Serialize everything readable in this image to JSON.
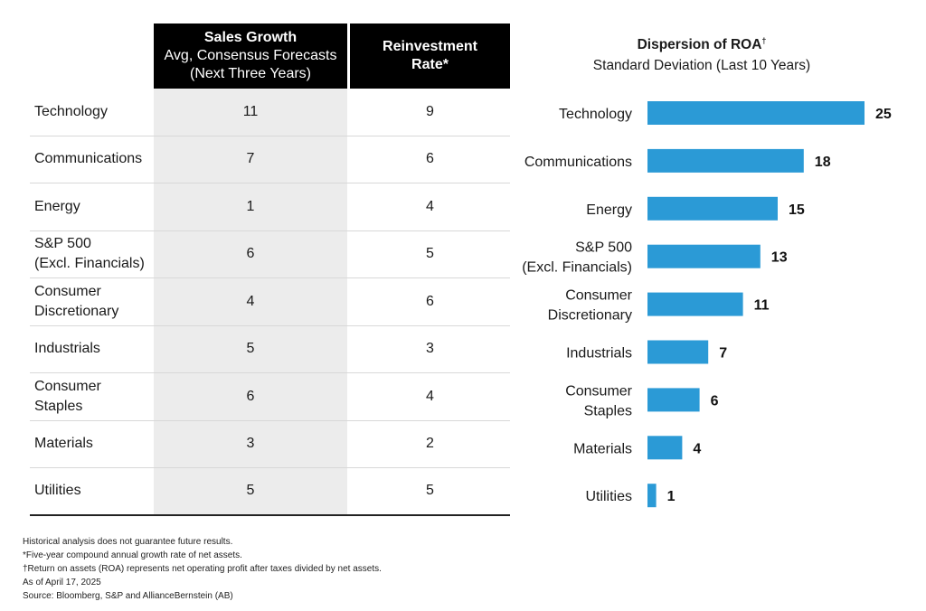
{
  "table": {
    "headers": {
      "sales_growth_title": "Sales Growth",
      "sales_growth_sub1": "Avg, Consensus Forecasts",
      "sales_growth_sub2": "(Next Three Years)",
      "reinvestment_line1": "Reinvestment",
      "reinvestment_line2": "Rate*"
    },
    "rows": [
      {
        "sector_line1": "Technology",
        "sector_line2": "",
        "sales_growth": "11",
        "reinvestment_rate": "9"
      },
      {
        "sector_line1": "Communications",
        "sector_line2": "",
        "sales_growth": "7",
        "reinvestment_rate": "6"
      },
      {
        "sector_line1": "Energy",
        "sector_line2": "",
        "sales_growth": "1",
        "reinvestment_rate": "4"
      },
      {
        "sector_line1": "S&P 500",
        "sector_line2": "(Excl. Financials)",
        "sales_growth": "6",
        "reinvestment_rate": "5"
      },
      {
        "sector_line1": "Consumer",
        "sector_line2": "Discretionary",
        "sales_growth": "4",
        "reinvestment_rate": "6"
      },
      {
        "sector_line1": "Industrials",
        "sector_line2": "",
        "sales_growth": "5",
        "reinvestment_rate": "3"
      },
      {
        "sector_line1": "Consumer",
        "sector_line2": "Staples",
        "sales_growth": "6",
        "reinvestment_rate": "4"
      },
      {
        "sector_line1": "Materials",
        "sector_line2": "",
        "sales_growth": "3",
        "reinvestment_rate": "2"
      },
      {
        "sector_line1": "Utilities",
        "sector_line2": "",
        "sales_growth": "5",
        "reinvestment_rate": "5"
      }
    ]
  },
  "chart_data": {
    "type": "bar",
    "orientation": "horizontal",
    "title": "Dispersion of ROA",
    "title_mark": "†",
    "subtitle": "Standard Deviation (Last 10 Years)",
    "categories": [
      [
        "Technology"
      ],
      [
        "Communications"
      ],
      [
        "Energy"
      ],
      [
        "S&P 500",
        "(Excl. Financials)"
      ],
      [
        "Consumer",
        "Discretionary"
      ],
      [
        "Industrials"
      ],
      [
        "Consumer",
        "Staples"
      ],
      [
        "Materials"
      ],
      [
        "Utilities"
      ]
    ],
    "values": [
      25,
      18,
      15,
      13,
      11,
      7,
      6,
      4,
      1
    ],
    "xlim": [
      0,
      25
    ],
    "grid": false,
    "bar_color": "#2b9ad6",
    "data_labels": true
  },
  "notes": [
    "Historical analysis does not guarantee future results.",
    "*Five-year compound annual growth rate of net assets.",
    "†Return on assets (ROA) represents net operating profit after taxes divided by net assets.",
    "As of April 17, 2025",
    "Source: Bloomberg, S&P and AllianceBernstein (AB)"
  ]
}
